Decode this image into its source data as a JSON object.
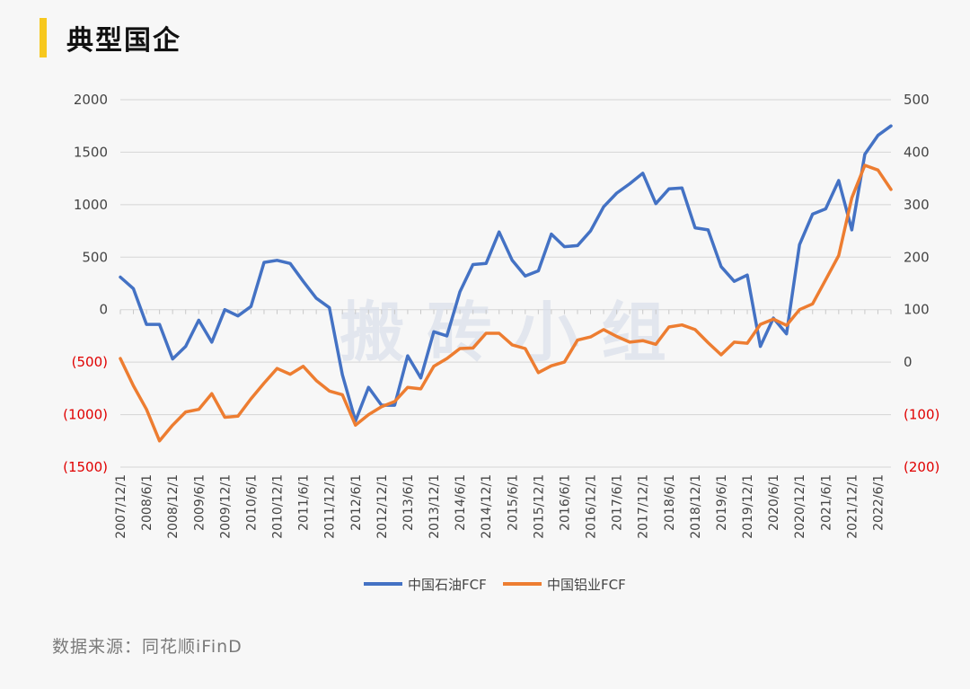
{
  "header": {
    "title": "典型国企"
  },
  "source": "数据来源：同花顺iFinD",
  "watermark": "搬 砖 小 组",
  "colors": {
    "accent": "#f7c81e",
    "series1": "#4472c4",
    "series2": "#ed7d31",
    "negative_tick": "#e00000"
  },
  "chart_data": {
    "type": "line",
    "title": "",
    "x": [
      "2007/12/1",
      "2008/3/1",
      "2008/6/1",
      "2008/9/1",
      "2008/12/1",
      "2009/3/1",
      "2009/6/1",
      "2009/9/1",
      "2009/12/1",
      "2010/3/1",
      "2010/6/1",
      "2010/9/1",
      "2010/12/1",
      "2011/3/1",
      "2011/6/1",
      "2011/9/1",
      "2011/12/1",
      "2012/3/1",
      "2012/6/1",
      "2012/9/1",
      "2012/12/1",
      "2013/3/1",
      "2013/6/1",
      "2013/9/1",
      "2013/12/1",
      "2014/3/1",
      "2014/6/1",
      "2014/9/1",
      "2014/12/1",
      "2015/3/1",
      "2015/6/1",
      "2015/9/1",
      "2015/12/1",
      "2016/3/1",
      "2016/6/1",
      "2016/9/1",
      "2016/12/1",
      "2017/3/1",
      "2017/6/1",
      "2017/9/1",
      "2017/12/1",
      "2018/3/1",
      "2018/6/1",
      "2018/9/1",
      "2018/12/1",
      "2019/3/1",
      "2019/6/1",
      "2019/9/1",
      "2019/12/1",
      "2020/3/1",
      "2020/6/1",
      "2020/9/1",
      "2020/12/1",
      "2021/3/1",
      "2021/6/1",
      "2021/9/1",
      "2021/12/1",
      "2022/3/1",
      "2022/6/1",
      "2022/9/1"
    ],
    "x_tick_labels": [
      "2007/12/1",
      "2008/6/1",
      "2008/12/1",
      "2009/6/1",
      "2009/12/1",
      "2010/6/1",
      "2010/12/1",
      "2011/6/1",
      "2011/12/1",
      "2012/6/1",
      "2012/12/1",
      "2013/6/1",
      "2013/12/1",
      "2014/6/1",
      "2014/12/1",
      "2015/6/1",
      "2015/12/1",
      "2016/6/1",
      "2016/12/1",
      "2017/6/1",
      "2017/12/1",
      "2018/6/1",
      "2018/12/1",
      "2019/6/1",
      "2019/12/1",
      "2020/6/1",
      "2020/12/1",
      "2021/6/1",
      "2021/12/1",
      "2022/6/1"
    ],
    "y_left": {
      "ticks": [
        "2000",
        "1500",
        "1000",
        "500",
        "0",
        "(500)",
        "(1000)",
        "(1500)"
      ],
      "ylim": [
        -1500,
        2000
      ]
    },
    "y_right": {
      "ticks": [
        "500",
        "400",
        "300",
        "200",
        "100",
        "0",
        "(100)",
        "(200)"
      ],
      "ylim": [
        -200,
        500
      ]
    },
    "grid": true,
    "legend": "bottom",
    "series": [
      {
        "name": "中国石油FCF",
        "axis": "left",
        "color": "#4472c4",
        "values": [
          310,
          200,
          -140,
          -140,
          -470,
          -350,
          -100,
          -310,
          0,
          -60,
          30,
          450,
          470,
          440,
          270,
          110,
          20,
          -620,
          -1060,
          -740,
          -910,
          -910,
          -440,
          -650,
          -210,
          -250,
          170,
          430,
          440,
          740,
          470,
          320,
          370,
          720,
          600,
          610,
          750,
          980,
          1110,
          1200,
          1300,
          1010,
          1150,
          1160,
          780,
          760,
          410,
          270,
          330,
          -350,
          -80,
          -230,
          620,
          910,
          960,
          1230,
          760,
          1480,
          1660,
          1750
        ]
      },
      {
        "name": "中国铝业FCF",
        "axis": "right",
        "color": "#ed7d31",
        "values": [
          7,
          -45,
          -90,
          -150,
          -120,
          -95,
          -90,
          -60,
          -105,
          -103,
          -70,
          -40,
          -12,
          -23,
          -8,
          -35,
          -55,
          -62,
          -120,
          -100,
          -85,
          -75,
          -48,
          -51,
          -8,
          7,
          26,
          27,
          55,
          55,
          33,
          26,
          -20,
          -7,
          0,
          42,
          48,
          62,
          49,
          38,
          41,
          34,
          67,
          71,
          62,
          37,
          14,
          38,
          36,
          72,
          82,
          70,
          100,
          111,
          157,
          203,
          313,
          375,
          366,
          329
        ]
      }
    ]
  },
  "legend": {
    "series1_label": "中国石油FCF",
    "series2_label": "中国铝业FCF"
  }
}
